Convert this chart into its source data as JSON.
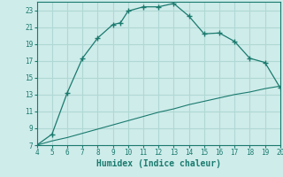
{
  "title": "",
  "xlabel": "Humidex (Indice chaleur)",
  "bg_color": "#ceecea",
  "grid_color": "#b0d8d4",
  "line_color": "#1a7a6e",
  "xlim": [
    4,
    20
  ],
  "ylim": [
    7,
    24
  ],
  "xticks": [
    4,
    5,
    6,
    7,
    8,
    9,
    10,
    11,
    12,
    13,
    14,
    15,
    16,
    17,
    18,
    19,
    20
  ],
  "yticks": [
    7,
    9,
    11,
    13,
    15,
    17,
    19,
    21,
    23
  ],
  "curve1_x": [
    4,
    5,
    6,
    7,
    8,
    9,
    9.5,
    10,
    11,
    12,
    13,
    14,
    15,
    16,
    17,
    18,
    19,
    20
  ],
  "curve1_y": [
    7.0,
    8.3,
    13.2,
    17.3,
    19.7,
    21.3,
    21.5,
    22.9,
    23.4,
    23.4,
    23.8,
    22.3,
    20.2,
    20.3,
    19.3,
    17.3,
    16.8,
    13.8
  ],
  "curve2_x": [
    4,
    5,
    6,
    7,
    8,
    9,
    10,
    11,
    12,
    13,
    14,
    15,
    16,
    17,
    18,
    19,
    20
  ],
  "curve2_y": [
    7.0,
    7.5,
    7.9,
    8.4,
    8.9,
    9.4,
    9.9,
    10.4,
    10.9,
    11.3,
    11.8,
    12.2,
    12.6,
    13.0,
    13.3,
    13.7,
    14.0
  ]
}
